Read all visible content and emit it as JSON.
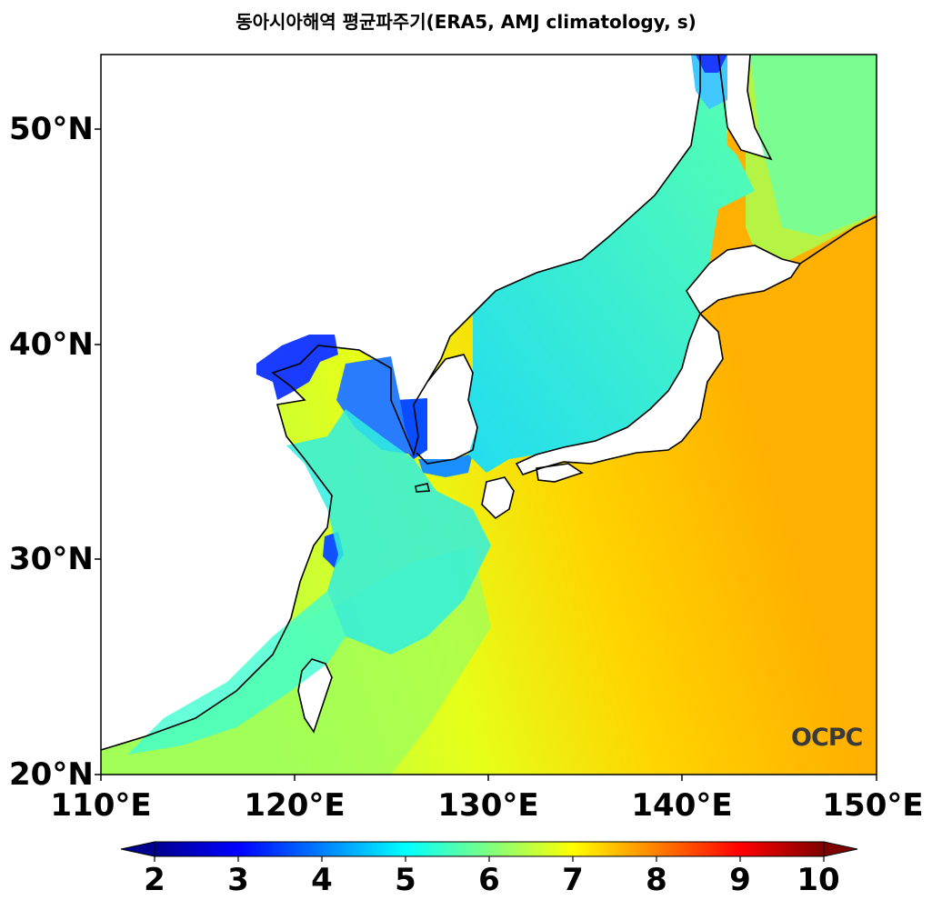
{
  "title": "동아시아해역 평균파주기(ERA5, AMJ climatology, s)",
  "y_ticks": [
    "50°N",
    "40°N",
    "30°N",
    "20°N"
  ],
  "x_ticks": [
    "110°E",
    "120°E",
    "130°E",
    "140°E",
    "150°E"
  ],
  "colorbar": {
    "ticks": [
      "2",
      "3",
      "4",
      "5",
      "6",
      "7",
      "8",
      "9",
      "10"
    ],
    "min": 2,
    "max": 10,
    "colormap": "jet",
    "extend": "both"
  },
  "logo_text": "OCPC",
  "map_data": {
    "lon_range": [
      110,
      150
    ],
    "lat_range": [
      20,
      53.5
    ],
    "variable": "mean wave period",
    "unit": "s",
    "regions": [
      {
        "name": "Bohai Sea",
        "value": 3
      },
      {
        "name": "Yellow Sea west coast of Korea",
        "value": 3.5
      },
      {
        "name": "East China Sea",
        "value": 5.5
      },
      {
        "name": "East Sea / Sea of Japan",
        "value": 5
      },
      {
        "name": "Northwest Pacific (southeast)",
        "value": 7.8
      }
    ]
  }
}
